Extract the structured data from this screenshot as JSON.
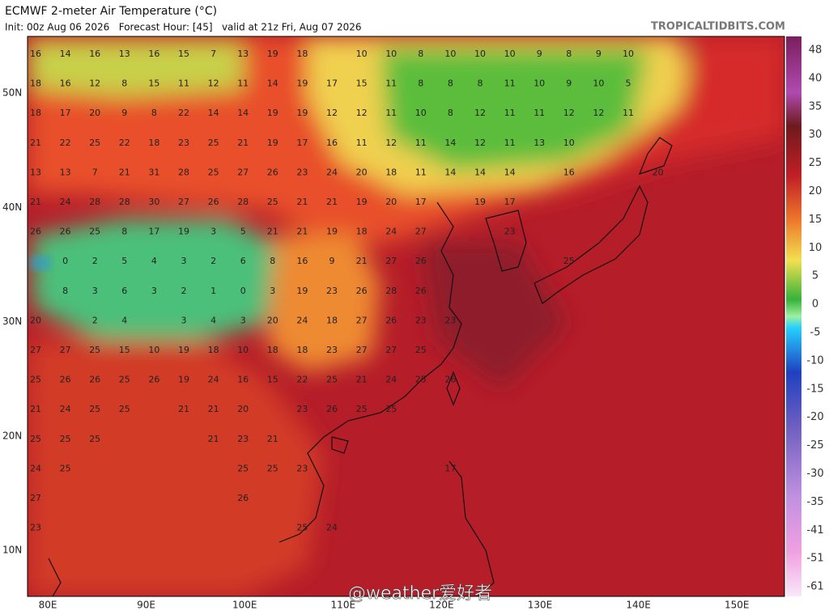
{
  "header": {
    "title": "ECMWF 2-meter Air Temperature (°C)",
    "subtitle": "Init: 00z Aug 06 2026   Forecast Hour: [45]   valid at 21z Fri, Aug 07 2026",
    "source": "TROPICALTIDBITS.COM"
  },
  "colorbar": {
    "labels": [
      "48",
      "40",
      "35",
      "30",
      "25",
      "20",
      "15",
      "10",
      "5",
      "0",
      "-5",
      "-10",
      "-15",
      "-20",
      "-25",
      "-30",
      "-35",
      "-41",
      "-51",
      "-61"
    ]
  },
  "lat_labels": [
    "50N",
    "40N",
    "30N",
    "20N",
    "10N"
  ],
  "lon_labels": [
    "80E",
    "90E",
    "100E",
    "110E",
    "120E",
    "130E",
    "140E",
    "150E"
  ],
  "watermark": "@weather爱好者",
  "grid_labels": [
    [
      16,
      14,
      16,
      13,
      16,
      15,
      7,
      13,
      19,
      18,
      null,
      10,
      10,
      8,
      10,
      10,
      10,
      9,
      8,
      9,
      10
    ],
    [
      18,
      16,
      12,
      8,
      15,
      11,
      12,
      11,
      14,
      19,
      17,
      15,
      11,
      8,
      8,
      8,
      11,
      10,
      9,
      10,
      5
    ],
    [
      18,
      17,
      20,
      9,
      8,
      22,
      14,
      14,
      19,
      19,
      12,
      12,
      11,
      10,
      8,
      12,
      11,
      11,
      12,
      12,
      11
    ],
    [
      21,
      22,
      25,
      22,
      18,
      23,
      25,
      21,
      19,
      17,
      16,
      11,
      12,
      11,
      14,
      12,
      11,
      13,
      10
    ],
    [
      13,
      13,
      7,
      21,
      31,
      28,
      25,
      27,
      26,
      23,
      24,
      20,
      18,
      11,
      14,
      14,
      14,
      null,
      16,
      null,
      null,
      20
    ],
    [
      21,
      24,
      28,
      28,
      30,
      27,
      26,
      28,
      25,
      21,
      21,
      19,
      20,
      17,
      null,
      19,
      17
    ],
    [
      26,
      26,
      25,
      8,
      17,
      19,
      3,
      5,
      21,
      21,
      19,
      18,
      24,
      27,
      null,
      null,
      23
    ],
    [
      null,
      0,
      2,
      5,
      4,
      3,
      2,
      6,
      8,
      16,
      9,
      21,
      27,
      26,
      null,
      null,
      null,
      null,
      25
    ],
    [
      null,
      8,
      3,
      6,
      3,
      2,
      1,
      0,
      3,
      19,
      23,
      26,
      28,
      26
    ],
    [
      20,
      null,
      2,
      4,
      null,
      3,
      4,
      3,
      20,
      24,
      18,
      27,
      26,
      23,
      23
    ],
    [
      27,
      27,
      25,
      15,
      10,
      19,
      18,
      10,
      18,
      18,
      23,
      27,
      27,
      25
    ],
    [
      25,
      26,
      26,
      25,
      26,
      19,
      24,
      16,
      15,
      22,
      25,
      21,
      24,
      25,
      26
    ],
    [
      21,
      24,
      25,
      25,
      null,
      21,
      21,
      20,
      null,
      23,
      26,
      25,
      25
    ],
    [
      25,
      25,
      25,
      null,
      null,
      null,
      21,
      23,
      21
    ],
    [
      24,
      25,
      null,
      null,
      null,
      null,
      null,
      25,
      25,
      23,
      null,
      null,
      null,
      null,
      17
    ],
    [
      27,
      null,
      null,
      null,
      null,
      null,
      null,
      26
    ],
    [
      23,
      null,
      null,
      null,
      null,
      null,
      null,
      null,
      null,
      25,
      24
    ]
  ]
}
